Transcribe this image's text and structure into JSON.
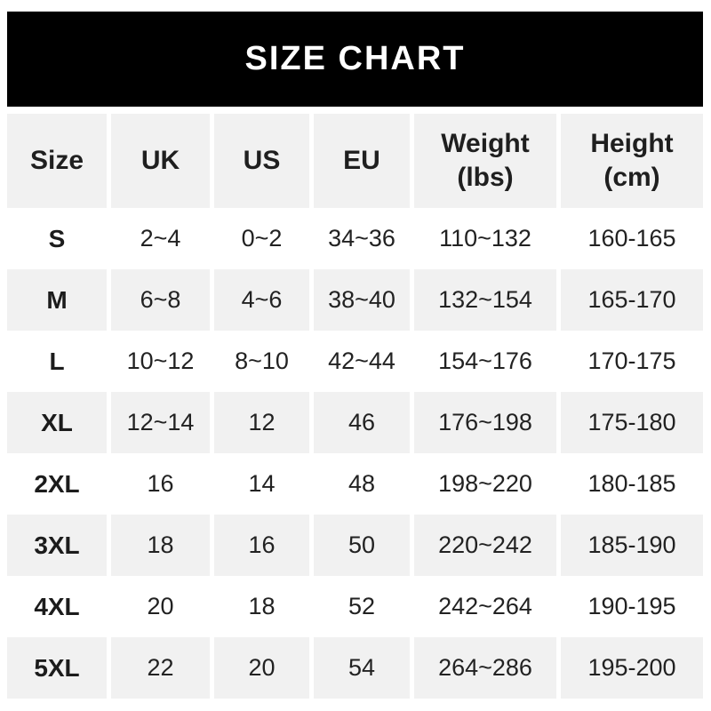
{
  "banner": {
    "title": "SIZE CHART"
  },
  "colors": {
    "banner_bg": "#000000",
    "banner_text": "#ffffff",
    "alt_row_bg": "#f1f1f1",
    "row_bg": "#ffffff",
    "text": "#222222"
  },
  "chart_data": {
    "type": "table",
    "title": "SIZE CHART",
    "columns": [
      [
        "Size"
      ],
      [
        "UK"
      ],
      [
        "US"
      ],
      [
        "EU"
      ],
      [
        "Weight",
        "(lbs)"
      ],
      [
        "Height",
        "(cm)"
      ]
    ],
    "rows": [
      [
        "S",
        "2~4",
        "0~2",
        "34~36",
        "110~132",
        "160-165"
      ],
      [
        "M",
        "6~8",
        "4~6",
        "38~40",
        "132~154",
        "165-170"
      ],
      [
        "L",
        "10~12",
        "8~10",
        "42~44",
        "154~176",
        "170-175"
      ],
      [
        "XL",
        "12~14",
        "12",
        "46",
        "176~198",
        "175-180"
      ],
      [
        "2XL",
        "16",
        "14",
        "48",
        "198~220",
        "180-185"
      ],
      [
        "3XL",
        "18",
        "16",
        "50",
        "220~242",
        "185-190"
      ],
      [
        "4XL",
        "20",
        "18",
        "52",
        "242~264",
        "190-195"
      ],
      [
        "5XL",
        "22",
        "20",
        "54",
        "264~286",
        "195-200"
      ]
    ]
  }
}
